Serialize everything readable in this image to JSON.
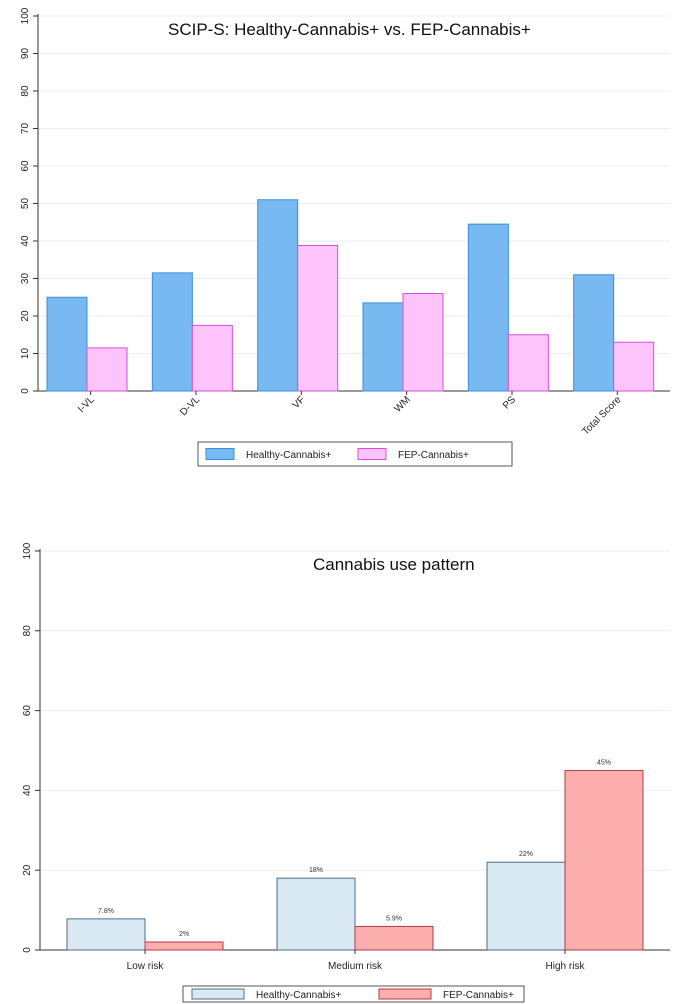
{
  "chart_data": [
    {
      "type": "bar",
      "title": "SCIP-S: Healthy-Cannabis+ vs. FEP-Cannabis+",
      "xlabel": "",
      "ylabel": "",
      "categories": [
        "I-VL",
        "D-VL",
        "VF",
        "WM",
        "PS",
        "Total Score"
      ],
      "series": [
        {
          "name": "Healthy-Cannabis+",
          "values": [
            25,
            31.5,
            51,
            23.5,
            44.5,
            31
          ],
          "color": "#78b9f2",
          "stroke": "#3d8ddc"
        },
        {
          "name": "FEP-Cannabis+",
          "values": [
            11.5,
            17.5,
            38.8,
            26,
            15,
            13
          ],
          "color": "#fcc4fb",
          "stroke": "#d651d6"
        }
      ],
      "ylim": [
        0,
        100
      ],
      "yticks": [
        "0",
        "10",
        "20",
        "30",
        "40",
        "50",
        "60",
        "70",
        "80",
        "90",
        "100"
      ],
      "grid": true,
      "legend": "bottom"
    },
    {
      "type": "bar",
      "title": "Cannabis use pattern",
      "xlabel": "",
      "ylabel": "",
      "categories": [
        "Low risk",
        "Medium risk",
        "High risk"
      ],
      "series": [
        {
          "name": "Healthy-Cannabis+",
          "values": [
            7.8,
            18,
            22
          ],
          "labels": [
            "7.8%",
            "18%",
            "22%"
          ],
          "color": "#d8e9f3",
          "stroke": "#4d6f86"
        },
        {
          "name": "FEP-Cannabis+",
          "values": [
            2,
            5.9,
            45
          ],
          "labels": [
            "2%",
            "5.9%",
            "45%"
          ],
          "color": "#fcaeae",
          "stroke": "#b33a46"
        }
      ],
      "ylim": [
        0,
        100
      ],
      "yticks": [
        "0",
        "20",
        "40",
        "60",
        "80",
        "100"
      ],
      "grid": true,
      "legend": "bottom"
    }
  ]
}
